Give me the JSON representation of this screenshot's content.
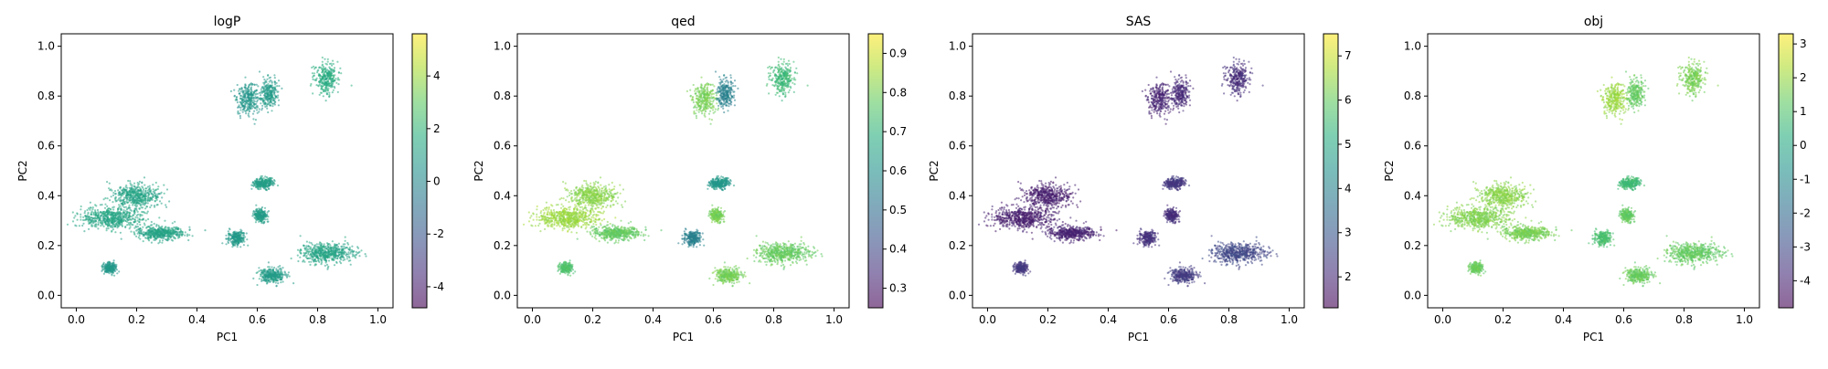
{
  "chart_data": [
    {
      "type": "scatter",
      "title": "logP",
      "xlabel": "PC1",
      "ylabel": "PC2",
      "xlim": [
        -0.05,
        1.05
      ],
      "ylim": [
        -0.05,
        1.05
      ],
      "xticks": [
        "0.0",
        "0.2",
        "0.4",
        "0.6",
        "0.8",
        "1.0"
      ],
      "yticks": [
        "0.0",
        "0.2",
        "0.4",
        "0.6",
        "0.8",
        "1.0"
      ],
      "colorbar": {
        "range": [
          -4.8,
          5.6
        ],
        "ticks": [
          "-4",
          "-2",
          "0",
          "2",
          "4"
        ]
      },
      "clusters": [
        {
          "center": [
            0.2,
            0.4
          ],
          "spread": [
            0.07,
            0.04
          ],
          "value": 1.2
        },
        {
          "center": [
            0.12,
            0.31
          ],
          "spread": [
            0.09,
            0.04
          ],
          "value": 1.3
        },
        {
          "center": [
            0.28,
            0.25
          ],
          "spread": [
            0.07,
            0.025
          ],
          "value": 1.2
        },
        {
          "center": [
            0.57,
            0.79
          ],
          "spread": [
            0.035,
            0.06
          ],
          "value": 0.6
        },
        {
          "center": [
            0.64,
            0.81
          ],
          "spread": [
            0.025,
            0.05
          ],
          "value": 0.8
        },
        {
          "center": [
            0.83,
            0.87
          ],
          "spread": [
            0.035,
            0.055
          ],
          "value": 1.6
        },
        {
          "center": [
            0.62,
            0.45
          ],
          "spread": [
            0.03,
            0.02
          ],
          "value": 1.0
        },
        {
          "center": [
            0.61,
            0.32
          ],
          "spread": [
            0.02,
            0.025
          ],
          "value": 0.9
        },
        {
          "center": [
            0.53,
            0.23
          ],
          "spread": [
            0.025,
            0.025
          ],
          "value": 0.8
        },
        {
          "center": [
            0.83,
            0.17
          ],
          "spread": [
            0.08,
            0.035
          ],
          "value": 1.2
        },
        {
          "center": [
            0.65,
            0.08
          ],
          "spread": [
            0.04,
            0.025
          ],
          "value": 0.9
        },
        {
          "center": [
            0.11,
            0.11
          ],
          "spread": [
            0.02,
            0.02
          ],
          "value": 0.7
        }
      ]
    },
    {
      "type": "scatter",
      "title": "qed",
      "xlabel": "PC1",
      "ylabel": "PC2",
      "xlim": [
        -0.05,
        1.05
      ],
      "ylim": [
        -0.05,
        1.05
      ],
      "xticks": [
        "0.0",
        "0.2",
        "0.4",
        "0.6",
        "0.8",
        "1.0"
      ],
      "yticks": [
        "0.0",
        "0.2",
        "0.4",
        "0.6",
        "0.8",
        "1.0"
      ],
      "colorbar": {
        "range": [
          0.25,
          0.95
        ],
        "ticks": [
          "0.3",
          "0.4",
          "0.5",
          "0.6",
          "0.7",
          "0.8",
          "0.9"
        ]
      },
      "clusters": [
        {
          "center": [
            0.2,
            0.4
          ],
          "spread": [
            0.07,
            0.04
          ],
          "value": 0.82
        },
        {
          "center": [
            0.12,
            0.31
          ],
          "spread": [
            0.09,
            0.04
          ],
          "value": 0.84
        },
        {
          "center": [
            0.28,
            0.25
          ],
          "spread": [
            0.07,
            0.025
          ],
          "value": 0.78
        },
        {
          "center": [
            0.57,
            0.79
          ],
          "spread": [
            0.035,
            0.06
          ],
          "value": 0.8
        },
        {
          "center": [
            0.64,
            0.81
          ],
          "spread": [
            0.025,
            0.05
          ],
          "value": 0.55
        },
        {
          "center": [
            0.83,
            0.87
          ],
          "spread": [
            0.035,
            0.055
          ],
          "value": 0.72
        },
        {
          "center": [
            0.62,
            0.45
          ],
          "spread": [
            0.03,
            0.02
          ],
          "value": 0.62
        },
        {
          "center": [
            0.61,
            0.32
          ],
          "spread": [
            0.02,
            0.025
          ],
          "value": 0.8
        },
        {
          "center": [
            0.53,
            0.23
          ],
          "spread": [
            0.025,
            0.025
          ],
          "value": 0.55
        },
        {
          "center": [
            0.83,
            0.17
          ],
          "spread": [
            0.08,
            0.035
          ],
          "value": 0.78
        },
        {
          "center": [
            0.65,
            0.08
          ],
          "spread": [
            0.04,
            0.025
          ],
          "value": 0.8
        },
        {
          "center": [
            0.11,
            0.11
          ],
          "spread": [
            0.02,
            0.02
          ],
          "value": 0.75
        }
      ]
    },
    {
      "type": "scatter",
      "title": "SAS",
      "xlabel": "PC1",
      "ylabel": "PC2",
      "xlim": [
        -0.05,
        1.05
      ],
      "ylim": [
        -0.05,
        1.05
      ],
      "xticks": [
        "0.0",
        "0.2",
        "0.4",
        "0.6",
        "0.8",
        "1.0"
      ],
      "yticks": [
        "0.0",
        "0.2",
        "0.4",
        "0.6",
        "0.8",
        "1.0"
      ],
      "colorbar": {
        "range": [
          1.3,
          7.5
        ],
        "ticks": [
          "2",
          "3",
          "4",
          "5",
          "6",
          "7"
        ]
      },
      "clusters": [
        {
          "center": [
            0.2,
            0.4
          ],
          "spread": [
            0.07,
            0.04
          ],
          "value": 1.8
        },
        {
          "center": [
            0.12,
            0.31
          ],
          "spread": [
            0.09,
            0.04
          ],
          "value": 1.8
        },
        {
          "center": [
            0.28,
            0.25
          ],
          "spread": [
            0.07,
            0.025
          ],
          "value": 1.9
        },
        {
          "center": [
            0.57,
            0.79
          ],
          "spread": [
            0.035,
            0.06
          ],
          "value": 1.9
        },
        {
          "center": [
            0.64,
            0.81
          ],
          "spread": [
            0.025,
            0.05
          ],
          "value": 2.0
        },
        {
          "center": [
            0.83,
            0.87
          ],
          "spread": [
            0.035,
            0.055
          ],
          "value": 2.1
        },
        {
          "center": [
            0.62,
            0.45
          ],
          "spread": [
            0.03,
            0.02
          ],
          "value": 2.3
        },
        {
          "center": [
            0.61,
            0.32
          ],
          "spread": [
            0.02,
            0.025
          ],
          "value": 2.1
        },
        {
          "center": [
            0.53,
            0.23
          ],
          "spread": [
            0.025,
            0.025
          ],
          "value": 2.2
        },
        {
          "center": [
            0.83,
            0.17
          ],
          "spread": [
            0.08,
            0.035
          ],
          "value": 2.6
        },
        {
          "center": [
            0.65,
            0.08
          ],
          "spread": [
            0.04,
            0.025
          ],
          "value": 2.4
        },
        {
          "center": [
            0.11,
            0.11
          ],
          "spread": [
            0.02,
            0.02
          ],
          "value": 2.3
        }
      ]
    },
    {
      "type": "scatter",
      "title": "obj",
      "xlabel": "PC1",
      "ylabel": "PC2",
      "xlim": [
        -0.05,
        1.05
      ],
      "ylim": [
        -0.05,
        1.05
      ],
      "xticks": [
        "0.0",
        "0.2",
        "0.4",
        "0.6",
        "0.8",
        "1.0"
      ],
      "yticks": [
        "0.0",
        "0.2",
        "0.4",
        "0.6",
        "0.8",
        "1.0"
      ],
      "colorbar": {
        "range": [
          -4.8,
          3.3
        ],
        "ticks": [
          "-4",
          "-3",
          "-2",
          "-1",
          "0",
          "1",
          "2",
          "3"
        ]
      },
      "clusters": [
        {
          "center": [
            0.2,
            0.4
          ],
          "spread": [
            0.07,
            0.04
          ],
          "value": 1.8
        },
        {
          "center": [
            0.12,
            0.31
          ],
          "spread": [
            0.09,
            0.04
          ],
          "value": 1.7
        },
        {
          "center": [
            0.28,
            0.25
          ],
          "spread": [
            0.07,
            0.025
          ],
          "value": 1.6
        },
        {
          "center": [
            0.57,
            0.79
          ],
          "spread": [
            0.035,
            0.06
          ],
          "value": 2.0
        },
        {
          "center": [
            0.64,
            0.81
          ],
          "spread": [
            0.025,
            0.05
          ],
          "value": 1.3
        },
        {
          "center": [
            0.83,
            0.87
          ],
          "spread": [
            0.035,
            0.055
          ],
          "value": 1.6
        },
        {
          "center": [
            0.62,
            0.45
          ],
          "spread": [
            0.03,
            0.02
          ],
          "value": 0.7
        },
        {
          "center": [
            0.61,
            0.32
          ],
          "spread": [
            0.02,
            0.025
          ],
          "value": 1.3
        },
        {
          "center": [
            0.53,
            0.23
          ],
          "spread": [
            0.025,
            0.025
          ],
          "value": 0.9
        },
        {
          "center": [
            0.83,
            0.17
          ],
          "spread": [
            0.08,
            0.035
          ],
          "value": 1.3
        },
        {
          "center": [
            0.65,
            0.08
          ],
          "spread": [
            0.04,
            0.025
          ],
          "value": 1.4
        },
        {
          "center": [
            0.11,
            0.11
          ],
          "spread": [
            0.02,
            0.02
          ],
          "value": 1.4
        }
      ]
    }
  ]
}
